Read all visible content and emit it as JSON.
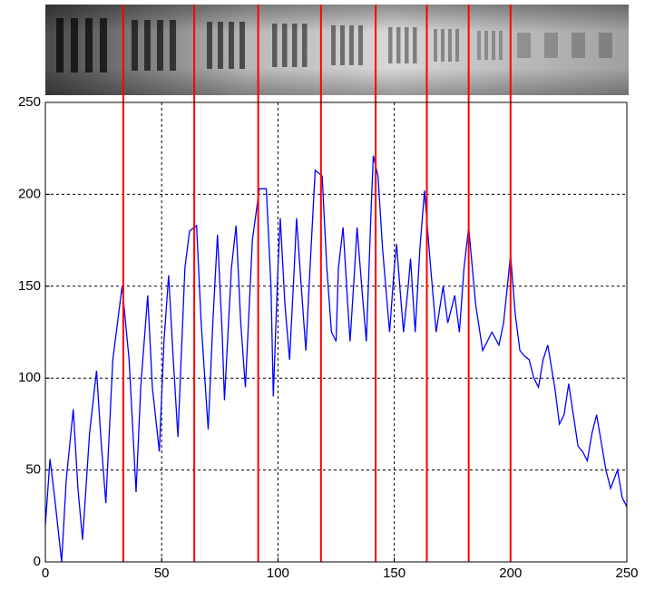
{
  "chart_data": {
    "type": "line",
    "x": [
      0,
      2,
      4,
      7,
      9,
      12,
      14,
      16,
      19,
      22,
      24,
      26,
      29,
      33,
      36,
      39,
      41,
      44,
      46,
      49,
      51,
      53,
      55,
      57,
      60,
      62,
      65,
      67,
      70,
      72,
      74,
      76,
      77,
      80,
      82,
      84,
      86,
      89,
      92,
      95,
      97,
      98,
      100,
      101,
      103,
      105,
      107,
      108,
      110,
      112,
      114,
      116,
      119,
      121,
      123,
      125,
      126,
      128,
      130,
      131,
      133,
      134,
      136,
      138,
      140,
      141,
      143,
      145,
      148,
      150,
      151,
      153,
      154,
      156,
      157,
      159,
      161,
      163,
      165,
      168,
      171,
      173,
      176,
      178,
      180,
      182,
      185,
      188,
      190,
      192,
      195,
      197,
      200,
      202,
      204,
      206,
      208,
      210,
      212,
      214,
      216,
      219,
      221,
      223,
      225,
      227,
      229,
      231,
      233,
      235,
      237,
      239,
      241,
      243,
      246,
      248,
      250
    ],
    "series": [
      {
        "color": "#0000ff",
        "values": [
          20,
          56,
          35,
          0,
          45,
          83,
          40,
          12,
          70,
          104,
          65,
          32,
          110,
          150,
          110,
          38,
          95,
          145,
          95,
          60,
          120,
          156,
          110,
          68,
          160,
          180,
          183,
          130,
          72,
          130,
          178,
          125,
          88,
          160,
          183,
          130,
          95,
          175,
          203,
          203,
          150,
          90,
          160,
          187,
          140,
          110,
          160,
          187,
          150,
          115,
          165,
          213,
          210,
          160,
          125,
          120,
          160,
          182,
          140,
          120,
          160,
          182,
          150,
          120,
          190,
          221,
          210,
          170,
          125,
          160,
          173,
          140,
          125,
          150,
          165,
          125,
          170,
          202,
          170,
          125,
          150,
          130,
          145,
          125,
          160,
          182,
          140,
          115,
          120,
          125,
          118,
          130,
          167,
          135,
          115,
          112,
          110,
          100,
          95,
          110,
          118,
          95,
          75,
          80,
          97,
          80,
          63,
          60,
          55,
          70,
          80,
          65,
          50,
          40,
          50,
          35,
          30
        ]
      }
    ],
    "vlines": {
      "color": "#ff0000",
      "values": [
        33.5,
        64,
        91.5,
        118.5,
        142,
        164,
        182,
        200
      ]
    },
    "xlim": [
      0,
      250
    ],
    "xticks": [
      0,
      50,
      100,
      150,
      200,
      250
    ],
    "ylim": [
      0,
      250
    ],
    "yticks": [
      0,
      50,
      100,
      150,
      200,
      250
    ],
    "grid": true
  }
}
